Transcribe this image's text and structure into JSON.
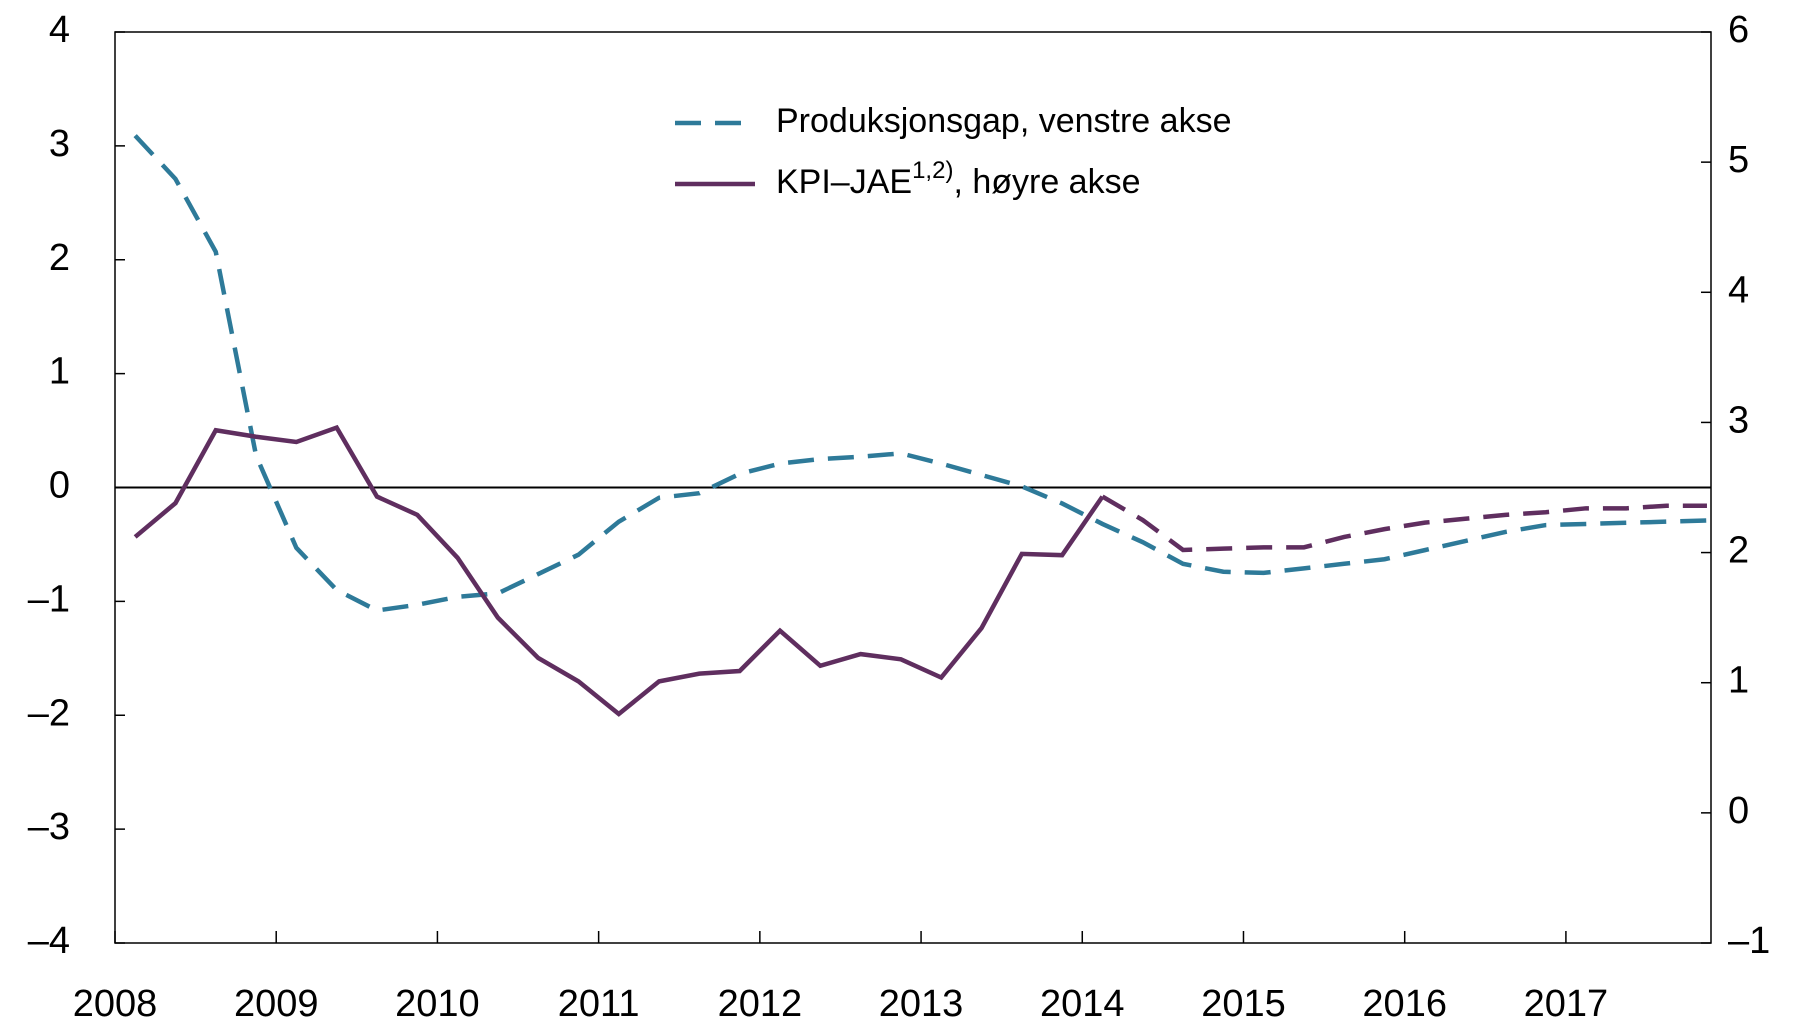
{
  "chart_data": {
    "type": "line",
    "x": [
      2008.125,
      2008.375,
      2008.625,
      2008.875,
      2009.125,
      2009.375,
      2009.625,
      2009.875,
      2010.125,
      2010.375,
      2010.625,
      2010.875,
      2011.125,
      2011.375,
      2011.625,
      2011.875,
      2012.125,
      2012.375,
      2012.625,
      2012.875,
      2013.125,
      2013.375,
      2013.625,
      2013.875,
      2014.125,
      2014.375,
      2014.625,
      2014.875,
      2015.125,
      2015.375,
      2015.625,
      2015.875,
      2016.125,
      2016.375,
      2016.625,
      2016.875,
      2017.125,
      2017.375,
      2017.625,
      2017.875
    ],
    "series": [
      {
        "name": "Produksjonsgap, venstre akse",
        "color": "#2e7a99",
        "dash": true,
        "values": [
          3.09,
          2.71,
          2.07,
          0.28,
          -0.53,
          -0.9,
          -1.08,
          -1.03,
          -0.96,
          -0.93,
          -0.76,
          -0.59,
          -0.3,
          -0.09,
          -0.05,
          0.12,
          0.21,
          0.25,
          0.27,
          0.3,
          0.21,
          0.11,
          0.01,
          -0.14,
          -0.32,
          -0.48,
          -0.67,
          -0.74,
          -0.75,
          -0.71,
          -0.67,
          -0.63,
          -0.55,
          -0.47,
          -0.39,
          -0.33,
          -0.32,
          -0.31,
          -0.3,
          -0.29
        ]
      },
      {
        "name": "KPI–JAE",
        "name_sup": "1,2)",
        "name_suffix": ", høyre akse",
        "color": "#5f2e5f",
        "axis": "y2",
        "dash_from_x": 2014.125,
        "values": [
          2.12,
          2.38,
          2.94,
          2.89,
          2.85,
          2.96,
          2.43,
          2.29,
          1.96,
          1.5,
          1.19,
          1.01,
          0.76,
          1.01,
          1.07,
          1.09,
          1.4,
          1.13,
          1.22,
          1.18,
          1.04,
          1.42,
          1.99,
          1.98,
          2.43,
          2.25,
          2.02,
          2.03,
          2.04,
          2.04,
          2.12,
          2.18,
          2.23,
          2.26,
          2.29,
          2.31,
          2.34,
          2.34,
          2.36,
          2.36
        ]
      }
    ],
    "xlim": [
      2008,
      2017.9
    ],
    "xticks": [
      2008,
      2009,
      2010,
      2011,
      2012,
      2013,
      2014,
      2015,
      2016,
      2017
    ],
    "ylim": [
      -4,
      4
    ],
    "yticks": [
      {
        "value": -4,
        "label": "–4"
      },
      {
        "value": -3,
        "label": "–3"
      },
      {
        "value": -2,
        "label": "–2"
      },
      {
        "value": -1,
        "label": "–1"
      },
      0,
      1,
      2,
      3,
      4
    ],
    "y2lim": [
      -1,
      6
    ],
    "y2ticks": [
      {
        "value": -1,
        "label": "–1"
      },
      0,
      1,
      2,
      3,
      4,
      5,
      6
    ],
    "zero_line": true,
    "legend": "top"
  }
}
